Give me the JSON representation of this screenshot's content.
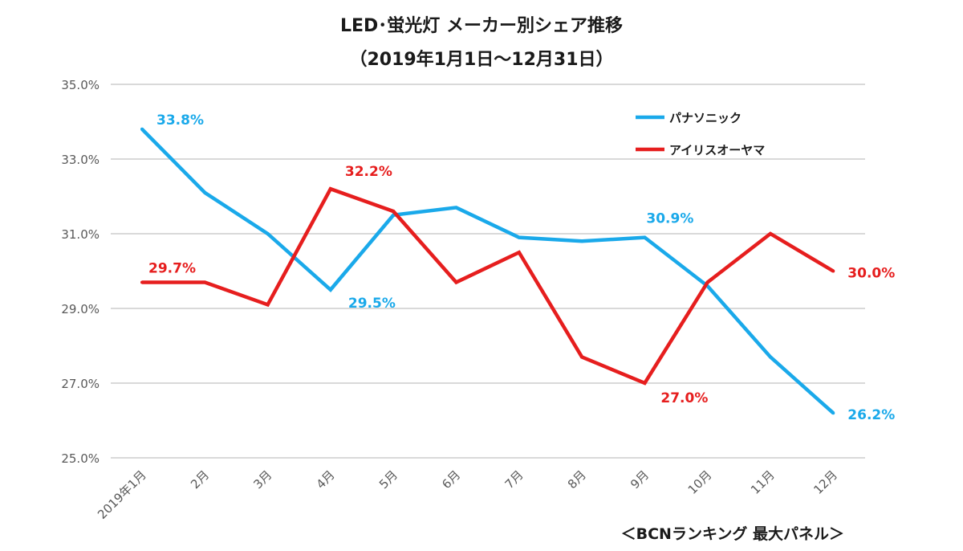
{
  "title_line1": "LED･蛍光灯 メーカー別シェア推移",
  "title_line2": "（2019年1月1日～12月31日）",
  "source_note": "＜BCNランキング 最大パネル＞",
  "colors": {
    "panasonic": "#1aa9ea",
    "iris": "#e61e1e",
    "grid": "#d9d9d9",
    "axis_text": "#595959"
  },
  "chart_data": {
    "type": "line",
    "categories": [
      "2019年1月",
      "2月",
      "3月",
      "4月",
      "5月",
      "6月",
      "7月",
      "8月",
      "9月",
      "10月",
      "11月",
      "12月"
    ],
    "y_ticks": [
      "25.0%",
      "27.0%",
      "29.0%",
      "31.0%",
      "33.0%",
      "35.0%"
    ],
    "ylim": [
      25.0,
      35.0
    ],
    "grid": true,
    "legend_position": "top-right",
    "series": [
      {
        "name": "パナソニック",
        "color_key": "panasonic",
        "values": [
          33.8,
          32.1,
          31.0,
          29.5,
          31.5,
          31.7,
          30.9,
          30.8,
          30.9,
          29.6,
          27.7,
          26.2
        ],
        "labels": [
          {
            "index": 0,
            "text": "33.8%"
          },
          {
            "index": 3,
            "text": "29.5%"
          },
          {
            "index": 8,
            "text": "30.9%"
          },
          {
            "index": 11,
            "text": "26.2%"
          }
        ]
      },
      {
        "name": "アイリスオーヤマ",
        "color_key": "iris",
        "values": [
          29.7,
          29.7,
          29.1,
          32.2,
          31.6,
          29.7,
          30.5,
          27.7,
          27.0,
          29.7,
          31.0,
          30.0
        ],
        "labels": [
          {
            "index": 0,
            "text": "29.7%"
          },
          {
            "index": 3,
            "text": "32.2%"
          },
          {
            "index": 8,
            "text": "27.0%"
          },
          {
            "index": 11,
            "text": "30.0%"
          }
        ]
      }
    ]
  }
}
